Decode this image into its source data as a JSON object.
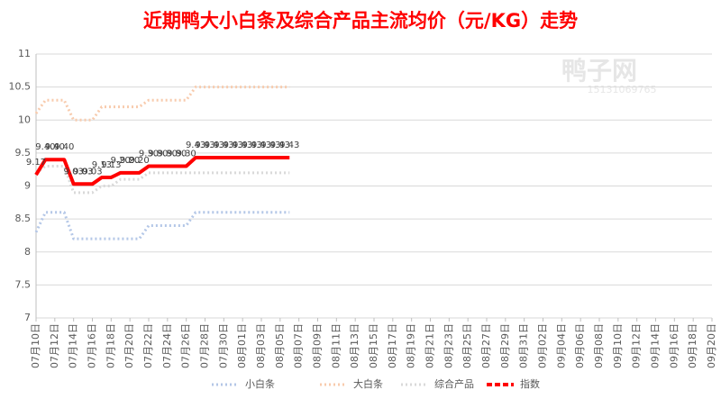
{
  "chart_data": {
    "type": "line",
    "title": "近期鸭大小白条及综合产品主流均价（元/KG）走势",
    "watermark": [
      "鸭子网",
      "15131069765"
    ],
    "categories": [
      "07月10日",
      null,
      "07月12日",
      null,
      "07月14日",
      null,
      "07月16日",
      null,
      "07月18日",
      null,
      "07月20日",
      null,
      "07月22日",
      null,
      "07月24日",
      null,
      "07月26日",
      null,
      "07月28日",
      null,
      "07月30日",
      null,
      "08月01日",
      null,
      "08月03日",
      null,
      "08月05日",
      null,
      "08月07日",
      null,
      "08月09日",
      null,
      "08月11日",
      null,
      "08月13日",
      null,
      "08月15日",
      null,
      "08月17日",
      null,
      "08月19日",
      null,
      "08月21日",
      null,
      "08月23日",
      null,
      "08月25日",
      null,
      "08月27日",
      null,
      "08月29日",
      null,
      "08月31日",
      null,
      "09月02日",
      null,
      "09月04日",
      null,
      "09月06日",
      null,
      "09月08日",
      null,
      "09月10日",
      null,
      "09月12日",
      null,
      "09月14日",
      null,
      "09月16日",
      null,
      "09月18日",
      null,
      "09月20日"
    ],
    "series": [
      {
        "name": "小白条",
        "color": "#b4c7e7",
        "style": "dotted",
        "values": [
          8.3,
          8.6,
          8.6,
          8.6,
          8.2,
          8.2,
          8.2,
          8.2,
          8.2,
          8.2,
          8.2,
          8.2,
          8.4,
          8.4,
          8.4,
          8.4,
          8.4,
          8.6,
          8.6,
          8.6,
          8.6,
          8.6,
          8.6,
          8.6,
          8.6,
          8.6,
          8.6,
          8.6,
          null,
          null,
          null,
          null,
          null,
          null,
          null,
          null,
          null,
          null,
          null,
          null,
          null,
          null,
          null,
          null,
          null,
          null,
          null,
          null,
          null,
          null,
          null,
          null,
          null,
          null,
          null,
          null,
          null,
          null,
          null,
          null,
          null,
          null,
          null,
          null,
          null,
          null,
          null,
          null,
          null,
          null,
          null,
          null,
          null
        ]
      },
      {
        "name": "大白条",
        "color": "#f8cbad",
        "style": "dotted",
        "values": [
          10.1,
          10.3,
          10.3,
          10.3,
          10.0,
          10.0,
          10.0,
          10.2,
          10.2,
          10.2,
          10.2,
          10.2,
          10.3,
          10.3,
          10.3,
          10.3,
          10.3,
          10.5,
          10.5,
          10.5,
          10.5,
          10.5,
          10.5,
          10.5,
          10.5,
          10.5,
          10.5,
          10.5,
          null,
          null,
          null,
          null,
          null,
          null,
          null,
          null,
          null,
          null,
          null,
          null,
          null,
          null,
          null,
          null,
          null,
          null,
          null,
          null,
          null,
          null,
          null,
          null,
          null,
          null,
          null,
          null,
          null,
          null,
          null,
          null,
          null,
          null,
          null,
          null,
          null,
          null,
          null,
          null,
          null,
          null,
          null,
          null,
          null
        ]
      },
      {
        "name": "综合产品",
        "color": "#d9d9d9",
        "style": "dotted",
        "values": [
          9.2,
          9.3,
          9.3,
          9.3,
          8.9,
          8.9,
          8.9,
          9.0,
          9.0,
          9.1,
          9.1,
          9.1,
          9.2,
          9.2,
          9.2,
          9.2,
          9.2,
          9.2,
          9.2,
          9.2,
          9.2,
          9.2,
          9.2,
          9.2,
          9.2,
          9.2,
          9.2,
          9.2,
          null,
          null,
          null,
          null,
          null,
          null,
          null,
          null,
          null,
          null,
          null,
          null,
          null,
          null,
          null,
          null,
          null,
          null,
          null,
          null,
          null,
          null,
          null,
          null,
          null,
          null,
          null,
          null,
          null,
          null,
          null,
          null,
          null,
          null,
          null,
          null,
          null,
          null,
          null,
          null,
          null,
          null,
          null,
          null,
          null
        ]
      },
      {
        "name": "指数",
        "color": "#ff0000",
        "style": "solid",
        "values": [
          9.17,
          9.4,
          9.4,
          9.4,
          9.03,
          9.03,
          9.03,
          9.13,
          9.13,
          9.2,
          9.2,
          9.2,
          9.3,
          9.3,
          9.3,
          9.3,
          9.3,
          9.43,
          9.43,
          9.43,
          9.43,
          9.43,
          9.43,
          9.43,
          9.43,
          9.43,
          9.43,
          9.43,
          null,
          null,
          null,
          null,
          null,
          null,
          null,
          null,
          null,
          null,
          null,
          null,
          null,
          null,
          null,
          null,
          null,
          null,
          null,
          null,
          null,
          null,
          null,
          null,
          null,
          null,
          null,
          null,
          null,
          null,
          null,
          null,
          null,
          null,
          null,
          null,
          null,
          null,
          null,
          null,
          null,
          null,
          null,
          null,
          null
        ],
        "value_labels": [
          "9.17",
          "9.40",
          "9.40",
          "9.40",
          "9.03",
          "9.03",
          "9.03",
          "9.13",
          "9.13",
          "9.20",
          "9.20",
          "9.20",
          "9.30",
          "9.30",
          "9.30",
          "9.30",
          "9.30",
          "9.43",
          "9.43",
          "9.43",
          "9.43",
          "9.43",
          "9.43",
          "9.43",
          "9.43",
          "9.43",
          "9.43",
          "9.43",
          null,
          null,
          null,
          null,
          null,
          null,
          null,
          null,
          null,
          null,
          null,
          null,
          null,
          null,
          null,
          null,
          null,
          null,
          null,
          null,
          null,
          null,
          null,
          null,
          null,
          null,
          null,
          null,
          null,
          null,
          null,
          null,
          null,
          null,
          null,
          null,
          null,
          null,
          null,
          null,
          null,
          null,
          null,
          null,
          null
        ]
      }
    ],
    "ylim": [
      7,
      11
    ],
    "yticks": [
      7,
      7.5,
      8,
      8.5,
      9,
      9.5,
      10,
      10.5,
      11
    ],
    "grid": true,
    "legend": "bottom"
  }
}
